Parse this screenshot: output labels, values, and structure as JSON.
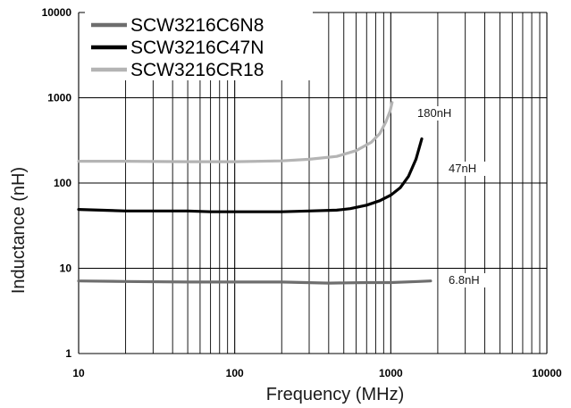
{
  "chart_data": {
    "type": "line",
    "title": "",
    "xlabel": "Frequency (MHz)",
    "ylabel": "Inductance (nH)",
    "xscale": "log",
    "yscale": "log",
    "xlim": [
      10,
      10000
    ],
    "ylim": [
      1,
      10000
    ],
    "x_ticks": [
      "10",
      "100",
      "1000",
      "10000"
    ],
    "y_ticks": [
      "1",
      "10",
      "100",
      "1000",
      "10000"
    ],
    "grid": true,
    "legend_position": "top-left",
    "series": [
      {
        "name": "SCW3216C6N8",
        "color": "#6e6e6e",
        "annotation": "6.8nH",
        "points": [
          [
            10,
            7.1
          ],
          [
            20,
            7.0
          ],
          [
            50,
            6.9
          ],
          [
            100,
            6.9
          ],
          [
            200,
            6.9
          ],
          [
            400,
            6.7
          ],
          [
            700,
            6.8
          ],
          [
            1000,
            6.8
          ],
          [
            1500,
            7.0
          ],
          [
            1800,
            7.1
          ]
        ]
      },
      {
        "name": "SCW3216C47N",
        "color": "#000000",
        "annotation": "47nH",
        "points": [
          [
            10,
            49
          ],
          [
            20,
            47
          ],
          [
            50,
            47
          ],
          [
            70,
            46
          ],
          [
            100,
            46
          ],
          [
            200,
            46
          ],
          [
            300,
            47
          ],
          [
            450,
            48
          ],
          [
            550,
            50
          ],
          [
            700,
            55
          ],
          [
            850,
            62
          ],
          [
            1000,
            72
          ],
          [
            1150,
            88
          ],
          [
            1300,
            120
          ],
          [
            1450,
            190
          ],
          [
            1580,
            330
          ]
        ]
      },
      {
        "name": "SCW3216CR18",
        "color": "#b4b4b4",
        "annotation": "180nH",
        "points": [
          [
            10,
            180
          ],
          [
            20,
            180
          ],
          [
            50,
            178
          ],
          [
            100,
            178
          ],
          [
            200,
            182
          ],
          [
            300,
            190
          ],
          [
            450,
            205
          ],
          [
            600,
            240
          ],
          [
            750,
            300
          ],
          [
            850,
            380
          ],
          [
            930,
            520
          ],
          [
            990,
            700
          ],
          [
            1020,
            880
          ]
        ]
      }
    ]
  }
}
